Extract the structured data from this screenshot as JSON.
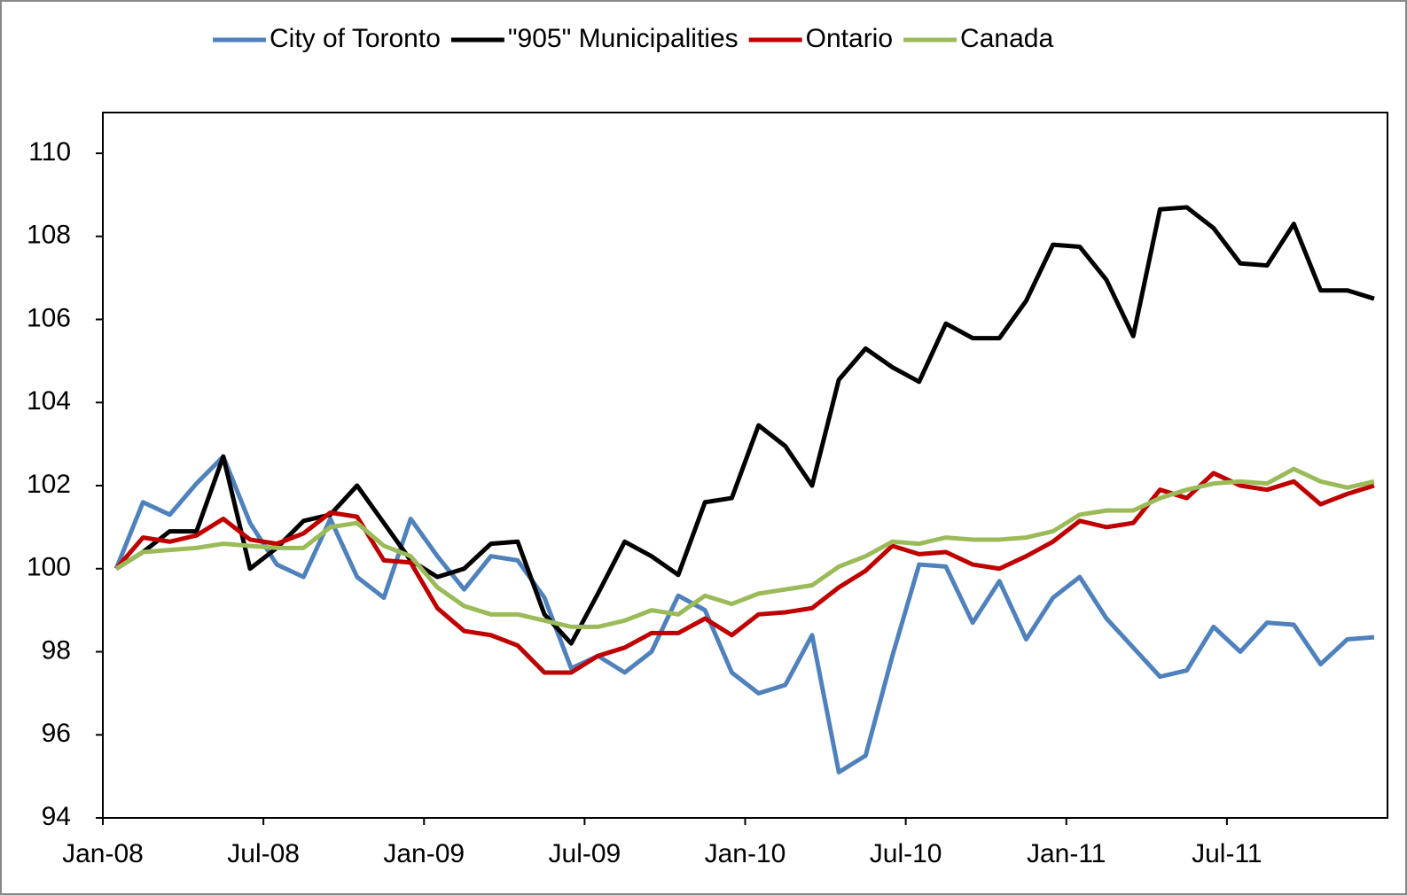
{
  "chart_data": {
    "type": "line",
    "categories": [
      "Jan-08",
      null,
      null,
      null,
      null,
      null,
      "Jul-08",
      null,
      null,
      null,
      null,
      null,
      "Jan-09",
      null,
      null,
      null,
      null,
      null,
      "Jul-09",
      null,
      null,
      null,
      null,
      null,
      "Jan-10",
      null,
      null,
      null,
      null,
      null,
      "Jul-10",
      null,
      null,
      null,
      null,
      null,
      "Jan-11",
      null,
      null,
      null,
      null,
      null,
      "Jul-11",
      null,
      null,
      null,
      null,
      null
    ],
    "series": [
      {
        "name": "City of Toronto",
        "color": "#4f81bd",
        "values": [
          100,
          101.6,
          101.3,
          102.05,
          102.7,
          101.1,
          100.1,
          99.8,
          101.2,
          99.8,
          99.3,
          101.2,
          100.3,
          99.5,
          100.3,
          100.2,
          99.3,
          97.6,
          97.9,
          97.5,
          98.0,
          99.35,
          99.0,
          97.5,
          97.0,
          97.2,
          98.4,
          95.1,
          95.5,
          97.9,
          100.1,
          100.05,
          98.7,
          99.7,
          98.3,
          99.3,
          99.8,
          98.8,
          98.1,
          97.4,
          97.55,
          98.6,
          98.0,
          98.7,
          98.65,
          97.7,
          98.3,
          98.35
        ]
      },
      {
        "name": "\"905\" Municipalities",
        "color": "#000000",
        "values": [
          100,
          100.4,
          100.9,
          100.9,
          102.7,
          100.0,
          100.5,
          101.15,
          101.3,
          102.0,
          101.1,
          100.2,
          99.8,
          100.0,
          100.6,
          100.65,
          98.9,
          98.2,
          99.4,
          100.65,
          100.3,
          99.85,
          101.6,
          101.7,
          103.45,
          102.95,
          102.0,
          104.55,
          105.3,
          104.85,
          104.5,
          105.9,
          105.55,
          105.55,
          106.45,
          107.8,
          107.75,
          106.95,
          105.6,
          108.65,
          108.7,
          108.2,
          107.35,
          107.3,
          108.3,
          106.7,
          106.7,
          106.5
        ]
      },
      {
        "name": "Ontario",
        "color": "#c00000",
        "values": [
          100,
          100.75,
          100.65,
          100.8,
          101.2,
          100.7,
          100.6,
          100.85,
          101.35,
          101.25,
          100.2,
          100.15,
          99.05,
          98.5,
          98.4,
          98.15,
          97.5,
          97.5,
          97.9,
          98.1,
          98.45,
          98.45,
          98.8,
          98.4,
          98.9,
          98.95,
          99.05,
          99.55,
          99.95,
          100.55,
          100.35,
          100.4,
          100.1,
          100.0,
          100.3,
          100.65,
          101.15,
          101.0,
          101.1,
          101.9,
          101.7,
          102.3,
          102.0,
          101.9,
          102.1,
          101.55,
          101.8,
          102.0
        ]
      },
      {
        "name": "Canada",
        "color": "#9bbb59",
        "values": [
          100,
          100.4,
          100.45,
          100.5,
          100.6,
          100.55,
          100.5,
          100.5,
          101.0,
          101.1,
          100.55,
          100.3,
          99.55,
          99.1,
          98.9,
          98.9,
          98.75,
          98.6,
          98.6,
          98.75,
          99.0,
          98.9,
          99.35,
          99.15,
          99.4,
          99.5,
          99.6,
          100.05,
          100.3,
          100.65,
          100.6,
          100.75,
          100.7,
          100.7,
          100.75,
          100.9,
          101.3,
          101.4,
          101.4,
          101.7,
          101.9,
          102.05,
          102.1,
          102.05,
          102.4,
          102.1,
          101.95,
          102.1
        ]
      }
    ],
    "ylim": [
      94,
      110
    ],
    "yticks": [
      94,
      96,
      98,
      100,
      102,
      104,
      106,
      108,
      110
    ],
    "legend": "top"
  }
}
